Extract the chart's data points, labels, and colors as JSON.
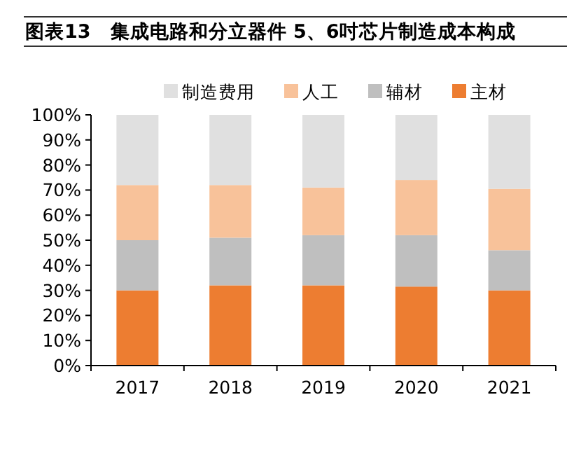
{
  "chart_data": {
    "type": "bar",
    "stacked": true,
    "title": "图表13　集成电路和分立器件 5、6吋芯片制造成本构成",
    "categories": [
      "2017",
      "2018",
      "2019",
      "2020",
      "2021"
    ],
    "series": [
      {
        "name": "主材",
        "color": "#ed7d31",
        "values": [
          30,
          32,
          32,
          31.5,
          30
        ]
      },
      {
        "name": "辅材",
        "color": "#bfbfbf",
        "values": [
          20,
          19,
          20,
          20.5,
          16
        ]
      },
      {
        "name": "人工",
        "color": "#f8c29a",
        "values": [
          22,
          21,
          19,
          22,
          24.5
        ]
      },
      {
        "name": "制造费用",
        "color": "#e0e0e0",
        "values": [
          28,
          28,
          29,
          26,
          29.5
        ]
      }
    ],
    "ylim": [
      0,
      100
    ],
    "yticks": [
      {
        "value": 0,
        "label": "0%"
      },
      {
        "value": 10,
        "label": "10%"
      },
      {
        "value": 20,
        "label": "20%"
      },
      {
        "value": 30,
        "label": "30%"
      },
      {
        "value": 40,
        "label": "40%"
      },
      {
        "value": 50,
        "label": "50%"
      },
      {
        "value": 60,
        "label": "60%"
      },
      {
        "value": 70,
        "label": "70%"
      },
      {
        "value": 80,
        "label": "80%"
      },
      {
        "value": 90,
        "label": "90%"
      },
      {
        "value": 100,
        "label": "100%"
      }
    ],
    "legend": "top"
  }
}
